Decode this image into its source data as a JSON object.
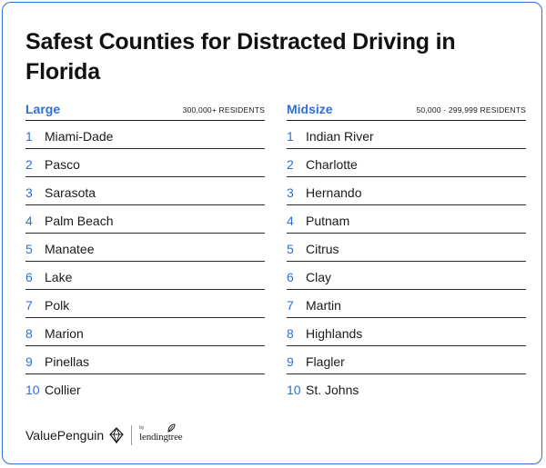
{
  "title": "Safest Counties for Distracted Driving in Florida",
  "colors": {
    "accent": "#2f6fd6",
    "text": "#1a1a1a"
  },
  "large": {
    "label": "Large",
    "subtitle": "300,000+ RESIDENTS",
    "items": [
      {
        "rank": "1",
        "name": "Miami-Dade"
      },
      {
        "rank": "2",
        "name": "Pasco"
      },
      {
        "rank": "3",
        "name": "Sarasota"
      },
      {
        "rank": "4",
        "name": "Palm Beach"
      },
      {
        "rank": "5",
        "name": "Manatee"
      },
      {
        "rank": "6",
        "name": "Lake"
      },
      {
        "rank": "7",
        "name": "Polk"
      },
      {
        "rank": "8",
        "name": "Marion"
      },
      {
        "rank": "9",
        "name": "Pinellas"
      },
      {
        "rank": "10",
        "name": "Collier"
      }
    ]
  },
  "midsize": {
    "label": "Midsize",
    "subtitle": "50,000 - 299,999 RESIDENTS",
    "items": [
      {
        "rank": "1",
        "name": "Indian River"
      },
      {
        "rank": "2",
        "name": "Charlotte"
      },
      {
        "rank": "3",
        "name": "Hernando"
      },
      {
        "rank": "4",
        "name": "Putnam"
      },
      {
        "rank": "5",
        "name": "Citrus"
      },
      {
        "rank": "6",
        "name": "Clay"
      },
      {
        "rank": "7",
        "name": "Martin"
      },
      {
        "rank": "8",
        "name": "Highlands"
      },
      {
        "rank": "9",
        "name": "Flagler"
      },
      {
        "rank": "10",
        "name": "St. Johns"
      }
    ]
  },
  "footer": {
    "brand": "ValuePenguin",
    "brand_icon": "valuepenguin-diamond-icon",
    "partner_by": "by",
    "partner": "lendingtree",
    "partner_icon": "leaf-icon"
  }
}
